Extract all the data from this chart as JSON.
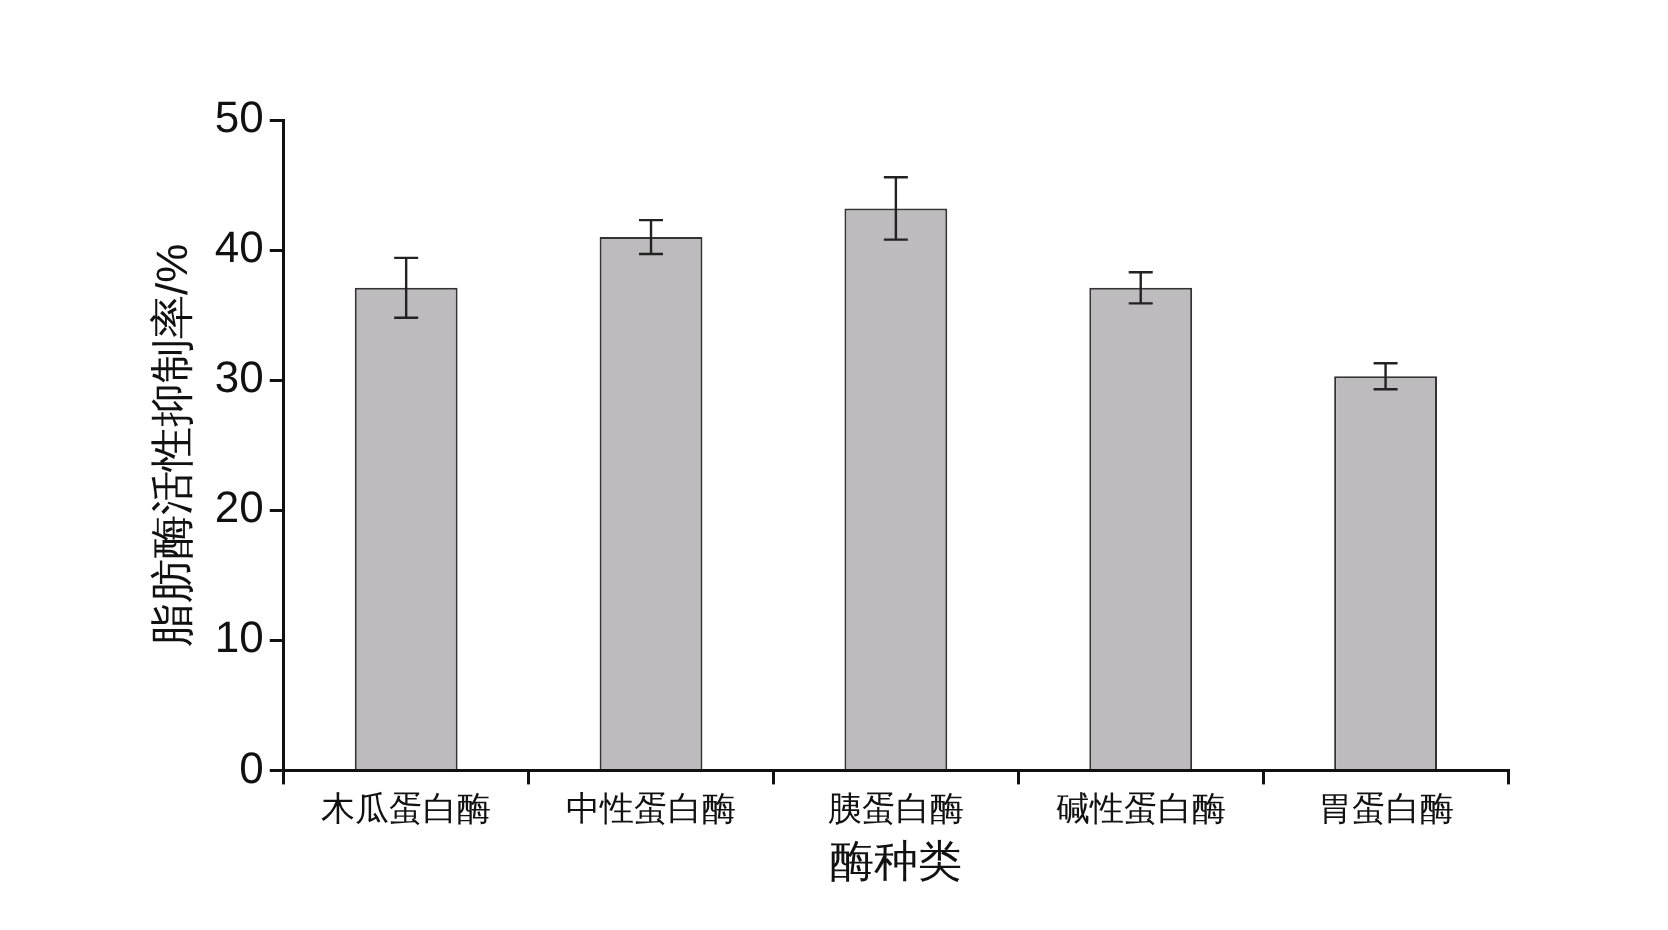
{
  "chart_data": {
    "type": "bar",
    "xlabel": "酶种类",
    "ylabel": "脂肪酶活性抑制率/%",
    "categories": [
      "木瓜蛋白酶",
      "中性蛋白酶",
      "胰蛋白酶",
      "碱性蛋白酶",
      "胃蛋白酶"
    ],
    "values": [
      37.1,
      41.0,
      43.2,
      37.1,
      30.3
    ],
    "errors": [
      2.3,
      1.3,
      2.4,
      1.2,
      1.0
    ],
    "color": "#bdbbbd",
    "ylim": [
      0,
      50
    ],
    "yticks": [
      0,
      10,
      20,
      30,
      40,
      50
    ],
    "grid": false,
    "legend": false
  }
}
